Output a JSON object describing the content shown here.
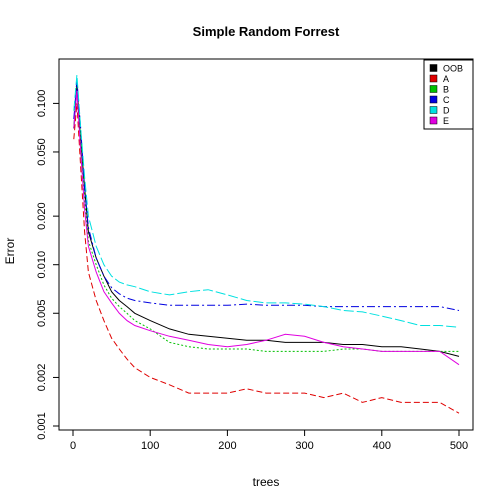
{
  "chart_data": {
    "type": "line",
    "title": "Simple Random Forrest",
    "xlabel": "trees",
    "ylabel": "Error",
    "xlim": [
      0,
      500
    ],
    "ylim": [
      0.001,
      0.15
    ],
    "y_scale": "log",
    "grid": false,
    "legend_position": "top-right",
    "x_ticks": [
      0,
      100,
      200,
      300,
      400,
      500
    ],
    "y_ticks": [
      0.001,
      0.002,
      0.005,
      0.01,
      0.02,
      0.05,
      0.1
    ],
    "y_tick_labels": [
      "0.001",
      "0.002",
      "0.005",
      "0.010",
      "0.020",
      "0.050",
      "0.100"
    ],
    "x": [
      1,
      5,
      10,
      15,
      20,
      30,
      40,
      50,
      60,
      70,
      80,
      100,
      125,
      150,
      175,
      200,
      225,
      250,
      275,
      300,
      325,
      350,
      375,
      400,
      425,
      450,
      475,
      500
    ],
    "series": [
      {
        "name": "OOB",
        "color": "#000000",
        "dash": "solid",
        "values": [
          0.07,
          0.13,
          0.06,
          0.03,
          0.016,
          0.011,
          0.0085,
          0.0068,
          0.006,
          0.0055,
          0.005,
          0.0045,
          0.004,
          0.0037,
          0.0036,
          0.0035,
          0.0034,
          0.0034,
          0.0033,
          0.0033,
          0.0033,
          0.0032,
          0.0032,
          0.0031,
          0.0031,
          0.003,
          0.0029,
          0.0027
        ]
      },
      {
        "name": "A",
        "color": "#df0000",
        "dash": "6,3",
        "values": [
          0.06,
          0.1,
          0.04,
          0.016,
          0.009,
          0.006,
          0.0045,
          0.0035,
          0.003,
          0.0026,
          0.0023,
          0.002,
          0.0018,
          0.0016,
          0.0016,
          0.0016,
          0.0017,
          0.0016,
          0.0016,
          0.0016,
          0.0015,
          0.0016,
          0.0014,
          0.0015,
          0.0014,
          0.0014,
          0.0014,
          0.0012
        ]
      },
      {
        "name": "B",
        "color": "#00c000",
        "dash": "2,2",
        "values": [
          0.07,
          0.12,
          0.06,
          0.025,
          0.014,
          0.01,
          0.0075,
          0.0062,
          0.0055,
          0.005,
          0.0045,
          0.004,
          0.0033,
          0.0031,
          0.003,
          0.003,
          0.003,
          0.0029,
          0.0029,
          0.0029,
          0.0029,
          0.003,
          0.003,
          0.0029,
          0.0029,
          0.0029,
          0.0029,
          0.0029
        ]
      },
      {
        "name": "C",
        "color": "#0000e0",
        "dash": "8,3,2,3",
        "values": [
          0.08,
          0.14,
          0.07,
          0.03,
          0.017,
          0.011,
          0.0085,
          0.0072,
          0.0066,
          0.0062,
          0.006,
          0.0058,
          0.0056,
          0.0056,
          0.0056,
          0.0056,
          0.0057,
          0.0056,
          0.0056,
          0.0056,
          0.0055,
          0.0055,
          0.0055,
          0.0055,
          0.0055,
          0.0055,
          0.0055,
          0.0052
        ]
      },
      {
        "name": "D",
        "color": "#00e0e0",
        "dash": "10,3",
        "values": [
          0.09,
          0.15,
          0.07,
          0.035,
          0.02,
          0.013,
          0.01,
          0.0085,
          0.0078,
          0.0075,
          0.0073,
          0.0068,
          0.0065,
          0.0068,
          0.007,
          0.0065,
          0.006,
          0.0058,
          0.0058,
          0.0057,
          0.0055,
          0.0052,
          0.0051,
          0.0048,
          0.0045,
          0.0042,
          0.0042,
          0.0041
        ]
      },
      {
        "name": "E",
        "color": "#e000e0",
        "dash": "solid",
        "values": [
          0.07,
          0.12,
          0.05,
          0.022,
          0.013,
          0.009,
          0.0068,
          0.0058,
          0.005,
          0.0045,
          0.0042,
          0.0039,
          0.0036,
          0.0034,
          0.0032,
          0.0031,
          0.0032,
          0.0034,
          0.0037,
          0.0036,
          0.0033,
          0.0031,
          0.003,
          0.0029,
          0.0029,
          0.0029,
          0.0029,
          0.0024
        ]
      }
    ]
  }
}
